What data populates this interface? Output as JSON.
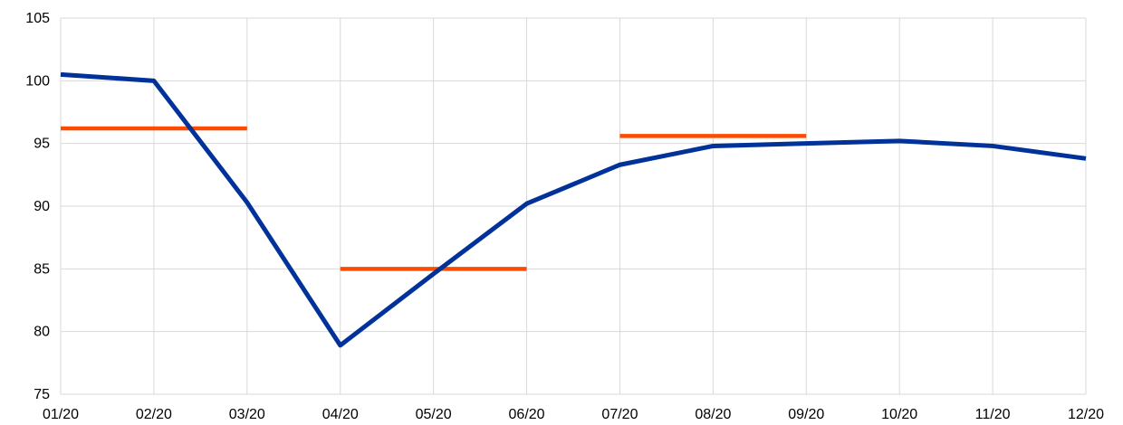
{
  "chart_data": {
    "type": "line",
    "title": "",
    "xlabel": "",
    "ylabel": "",
    "categories": [
      "01/20",
      "02/20",
      "03/20",
      "04/20",
      "05/20",
      "06/20",
      "07/20",
      "08/20",
      "09/20",
      "10/20",
      "11/20",
      "12/20"
    ],
    "ylim": [
      75,
      105
    ],
    "yticks": [
      75,
      80,
      85,
      90,
      95,
      100,
      105
    ],
    "grid": true,
    "series": [
      {
        "values": [
          100.5,
          100.0,
          90.3,
          78.9,
          84.6,
          90.2,
          93.3,
          94.8,
          95.0,
          95.2,
          94.8,
          93.8
        ],
        "color": "#003299"
      }
    ],
    "segments": [
      {
        "x_start": "01/20",
        "x_end": "03/20",
        "value": 96.2,
        "color": "#ff4b00"
      },
      {
        "x_start": "04/20",
        "x_end": "06/20",
        "value": 85.0,
        "color": "#ff4b00"
      },
      {
        "x_start": "07/20",
        "x_end": "09/20",
        "value": 95.6,
        "color": "#ff4b00"
      }
    ]
  }
}
